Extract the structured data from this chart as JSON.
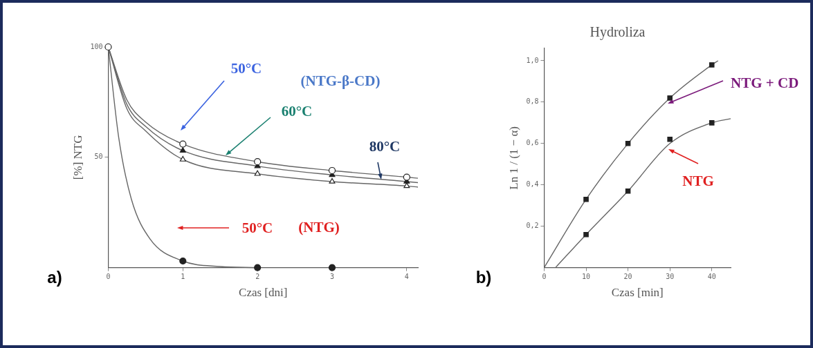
{
  "chart_data": [
    {
      "type": "scatter",
      "xlabel": "Czas [dni]",
      "ylabel": "[%] NTG",
      "xlim": [
        0,
        4.15
      ],
      "ylim": [
        0,
        100
      ],
      "xticks": [
        0,
        1,
        2,
        3,
        4
      ],
      "yticks": [
        50,
        100
      ],
      "grid": false,
      "legend": false,
      "series": [
        {
          "type": "scatter",
          "marker": "circle",
          "color": "#222222",
          "x": [
            0,
            1,
            2,
            3,
            4
          ],
          "values": [
            100,
            56,
            48,
            44,
            41
          ]
        },
        {
          "type": "scatter",
          "marker": "triangle",
          "color": "#222222",
          "x": [
            1,
            2,
            3,
            4
          ],
          "values": [
            53,
            46,
            42,
            39
          ]
        },
        {
          "type": "scatter",
          "marker": "triangle",
          "color": "#222222",
          "x": [
            1,
            2,
            3,
            4
          ],
          "values": [
            49,
            42.5,
            39,
            37
          ]
        },
        {
          "type": "scatter",
          "marker": "circle",
          "color": "#222222",
          "x": [
            1,
            2,
            3
          ],
          "values": [
            3,
            0,
            0
          ]
        },
        {
          "type": "line",
          "marker": "none",
          "color": "#666666",
          "x": [
            0,
            0.25,
            0.5,
            1,
            2,
            3,
            4,
            4.15
          ],
          "values": [
            100,
            76,
            66,
            56,
            48,
            44,
            41,
            40.5
          ]
        },
        {
          "type": "line",
          "marker": "none",
          "color": "#666666",
          "x": [
            0,
            0.25,
            0.5,
            1,
            2,
            3,
            4,
            4.15
          ],
          "values": [
            100,
            74,
            64,
            53,
            46,
            42,
            39,
            38.5
          ]
        },
        {
          "type": "line",
          "marker": "none",
          "color": "#666666",
          "x": [
            0,
            0.25,
            0.5,
            1,
            2,
            3,
            4,
            4.15
          ],
          "values": [
            100,
            72,
            62,
            49,
            42.5,
            39,
            37,
            36.5
          ]
        },
        {
          "type": "line",
          "marker": "none",
          "color": "#666666",
          "x": [
            0,
            0.14,
            0.31,
            0.56,
            1,
            1.5,
            2
          ],
          "values": [
            100,
            59,
            31,
            13,
            3,
            0.5,
            0
          ]
        }
      ],
      "annotations": [
        "a)",
        "50°C",
        "(NTG-β-CD)",
        "60°C",
        "80°C",
        "50°C",
        "(NTG)"
      ]
    },
    {
      "type": "scatter",
      "title": "Hydroliza",
      "xlabel": "Czas [min]",
      "ylabel": "Ln 1 / (1 − α)",
      "xlim": [
        0,
        44.5
      ],
      "ylim": [
        0,
        1.06
      ],
      "xticks": [
        0,
        10,
        20,
        30,
        40
      ],
      "yticks": [
        {
          "value": 0.2,
          "label": "0,2"
        },
        {
          "value": 0.4,
          "label": "0,4"
        },
        {
          "value": 0.6,
          "label": "0,6"
        },
        {
          "value": 0.8,
          "label": "0,8"
        },
        {
          "value": 1,
          "label": "1,0"
        }
      ],
      "grid": false,
      "legend": false,
      "series": [
        {
          "type": "scatter",
          "marker": "square",
          "color": "#222222",
          "x": [
            10,
            20,
            30,
            40
          ],
          "values": [
            0.33,
            0.6,
            0.82,
            0.98
          ]
        },
        {
          "type": "scatter",
          "marker": "square",
          "color": "#222222",
          "x": [
            10,
            20,
            30,
            40
          ],
          "values": [
            0.16,
            0.37,
            0.62,
            0.7
          ]
        },
        {
          "type": "line",
          "marker": "none",
          "color": "#666666",
          "x": [
            0,
            10,
            20,
            30,
            40,
            41.5
          ],
          "values": [
            0,
            0.33,
            0.6,
            0.82,
            0.98,
            1.0
          ]
        },
        {
          "type": "line",
          "marker": "none",
          "color": "#666666",
          "x": [
            2.7,
            10,
            20,
            30,
            40,
            44.5
          ],
          "values": [
            0,
            0.16,
            0.37,
            0.6,
            0.7,
            0.72
          ]
        }
      ],
      "annotations": [
        "b)",
        {
          "text": "NTG + CD",
          "x": 30,
          "y": 0.82
        },
        "NTG"
      ]
    }
  ]
}
